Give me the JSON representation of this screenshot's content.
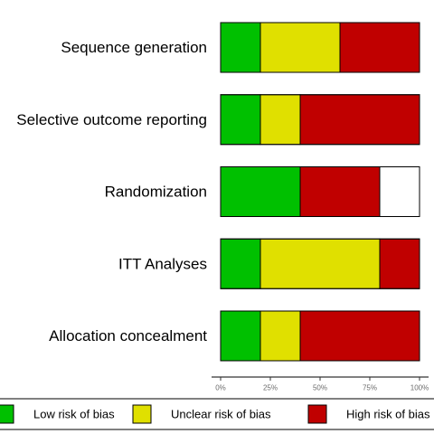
{
  "chart_data": {
    "type": "bar",
    "orientation": "horizontal",
    "stacked": true,
    "categories": [
      "Sequence generation",
      "Selective outcome reporting",
      "Randomization",
      "ITT Analyses",
      "Allocation concealment"
    ],
    "series": [
      {
        "name": "Low risk of bias",
        "color": "#00c000",
        "values": [
          20,
          20,
          40,
          20,
          20
        ]
      },
      {
        "name": "Unclear risk of bias",
        "color": "#e0e000",
        "values": [
          40,
          20,
          0,
          60,
          20
        ]
      },
      {
        "name": "High risk of bias",
        "color": "#c00000",
        "values": [
          40,
          60,
          40,
          20,
          60
        ]
      }
    ],
    "xlim": [
      0,
      100
    ],
    "x_ticks": [
      "0%",
      "25%",
      "50%",
      "75%",
      "100%"
    ],
    "title": "",
    "xlabel": "",
    "ylabel": "",
    "grid": false,
    "legend_position": "bottom"
  }
}
